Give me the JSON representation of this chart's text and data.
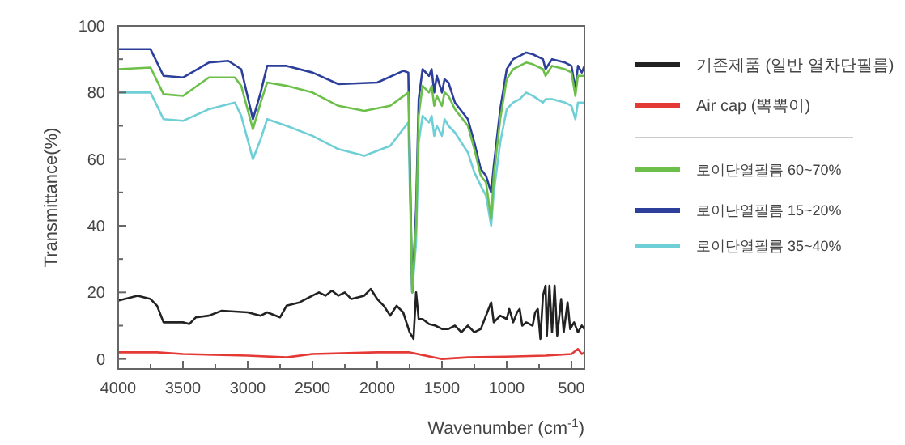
{
  "chart_data": {
    "type": "line",
    "xlabel": "Wavenumber (cm$^{-1}$)",
    "ylabel": "Transmittance(%)",
    "xlim": [
      4000,
      400
    ],
    "ylim": [
      -3,
      100
    ],
    "xticks": [
      4000,
      {
        "value": 3750,
        "label": null
      },
      3500,
      {
        "value": 3250,
        "label": null
      },
      3000,
      {
        "value": 2750,
        "label": null
      },
      2500,
      {
        "value": 2250,
        "label": null
      },
      2000,
      {
        "value": 1750,
        "label": null
      },
      1500,
      {
        "value": 1250,
        "label": null
      },
      1000,
      {
        "value": 750,
        "label": null
      },
      500
    ],
    "yticks": [
      0,
      {
        "value": 10,
        "label": null
      },
      20,
      {
        "value": 30,
        "label": null
      },
      40,
      {
        "value": 50,
        "label": null
      },
      60,
      {
        "value": 70,
        "label": null
      },
      80,
      {
        "value": 90,
        "label": null
      },
      100
    ],
    "grid": false,
    "legend": "right",
    "line_style": "solid",
    "marker": "none",
    "series": [
      {
        "name": "기존제품 (일반 열차단필름)",
        "color": "#222222",
        "x": [
          4000,
          3850,
          3750,
          3700,
          3650,
          3500,
          3450,
          3400,
          3300,
          3200,
          3000,
          2900,
          2850,
          2750,
          2700,
          2600,
          2500,
          2450,
          2400,
          2350,
          2300,
          2250,
          2200,
          2100,
          2050,
          2000,
          1950,
          1900,
          1850,
          1800,
          1750,
          1720,
          1700,
          1680,
          1650,
          1600,
          1550,
          1500,
          1450,
          1400,
          1350,
          1300,
          1250,
          1200,
          1150,
          1120,
          1100,
          1050,
          1000,
          980,
          950,
          920,
          900,
          880,
          850,
          800,
          780,
          760,
          740,
          720,
          700,
          690,
          670,
          650,
          630,
          610,
          580,
          560,
          530,
          510,
          480,
          450,
          420,
          400
        ],
        "values": [
          17.5,
          19,
          18,
          16,
          11,
          11,
          10.5,
          12.5,
          13,
          14.5,
          14,
          13,
          14,
          12.5,
          16,
          17,
          19,
          20,
          19,
          20.5,
          19,
          20,
          18,
          19,
          21,
          18,
          16,
          13,
          16,
          14,
          8,
          6,
          20,
          12,
          12,
          10.5,
          10,
          9,
          9,
          10,
          8,
          10,
          8,
          9,
          14,
          17,
          11,
          13,
          12,
          15,
          11,
          14,
          15,
          10,
          11,
          10,
          14,
          15,
          6,
          19,
          22,
          7,
          22,
          8,
          22,
          7,
          18,
          8,
          17,
          9,
          11,
          8,
          10,
          9
        ]
      },
      {
        "name": "Air cap (뽁뽁이)",
        "color": "#e53935",
        "x": [
          4000,
          3700,
          3500,
          3000,
          2700,
          2500,
          2000,
          1750,
          1500,
          1300,
          1000,
          700,
          500,
          450,
          420,
          400
        ],
        "values": [
          2,
          2,
          1.5,
          1,
          0.5,
          1.5,
          2,
          2,
          0,
          0.5,
          0.7,
          1,
          1.5,
          3,
          1.5,
          2
        ]
      },
      {
        "name": "로이단열필름 60~70%",
        "color": "#6cc04a",
        "x": [
          4000,
          3750,
          3650,
          3500,
          3300,
          3100,
          3050,
          2960,
          2900,
          2850,
          2700,
          2500,
          2300,
          2100,
          1900,
          1760,
          1730,
          1700,
          1680,
          1650,
          1600,
          1580,
          1560,
          1540,
          1500,
          1480,
          1450,
          1400,
          1300,
          1250,
          1200,
          1160,
          1120,
          1100,
          1050,
          1000,
          950,
          900,
          850,
          800,
          720,
          700,
          650,
          550,
          500,
          470,
          450,
          400
        ],
        "values": [
          87,
          87.5,
          79.5,
          79,
          84.5,
          84.5,
          82,
          69,
          77,
          83,
          82,
          80,
          76,
          74.5,
          76,
          80,
          20,
          40,
          73,
          82,
          80,
          82,
          76,
          79,
          76,
          80,
          79,
          75,
          70,
          63,
          55,
          53,
          42,
          55,
          72,
          84,
          87,
          88,
          89,
          88.5,
          87,
          85,
          88,
          87,
          86,
          79,
          85,
          85
        ]
      },
      {
        "name": "로이단열필름 15~20%",
        "color": "#2b3f9b",
        "x": [
          4000,
          3750,
          3650,
          3500,
          3300,
          3150,
          3050,
          2960,
          2900,
          2850,
          2700,
          2500,
          2300,
          2000,
          1800,
          1760,
          1730,
          1700,
          1680,
          1650,
          1600,
          1580,
          1560,
          1540,
          1500,
          1480,
          1450,
          1400,
          1300,
          1250,
          1200,
          1160,
          1120,
          1100,
          1050,
          1000,
          950,
          900,
          850,
          800,
          720,
          700,
          650,
          550,
          500,
          470,
          450,
          420,
          400
        ],
        "values": [
          93,
          93,
          85,
          84.5,
          89,
          89.5,
          87,
          72,
          80,
          88,
          88,
          86,
          82.5,
          83,
          86.5,
          86,
          20,
          45,
          78,
          87,
          85,
          87,
          80,
          85,
          80,
          84,
          83,
          77,
          72,
          65,
          57,
          55,
          50,
          58,
          75,
          87,
          90,
          91,
          92,
          91.5,
          90,
          87,
          90,
          89,
          88,
          81,
          88,
          86,
          88
        ]
      },
      {
        "name": "로이단열필름 35~40%",
        "color": "#6fcfd6",
        "x": [
          4000,
          3750,
          3650,
          3500,
          3300,
          3100,
          3050,
          2960,
          2900,
          2850,
          2700,
          2500,
          2300,
          2100,
          1900,
          1760,
          1730,
          1700,
          1680,
          1650,
          1600,
          1580,
          1560,
          1540,
          1500,
          1480,
          1450,
          1400,
          1300,
          1250,
          1200,
          1160,
          1120,
          1100,
          1050,
          1000,
          950,
          900,
          850,
          800,
          720,
          700,
          650,
          550,
          500,
          470,
          450,
          400
        ],
        "values": [
          80,
          80,
          72,
          71.5,
          75,
          77,
          73,
          60,
          66,
          72,
          70,
          67,
          63,
          61,
          64,
          71,
          20,
          35,
          65,
          73,
          71,
          73,
          67,
          70,
          67,
          72,
          70,
          68,
          62,
          56,
          52,
          49,
          40,
          50,
          65,
          75,
          77,
          78,
          80,
          79,
          77,
          78,
          78,
          77,
          76,
          72,
          77,
          77
        ]
      }
    ]
  }
}
